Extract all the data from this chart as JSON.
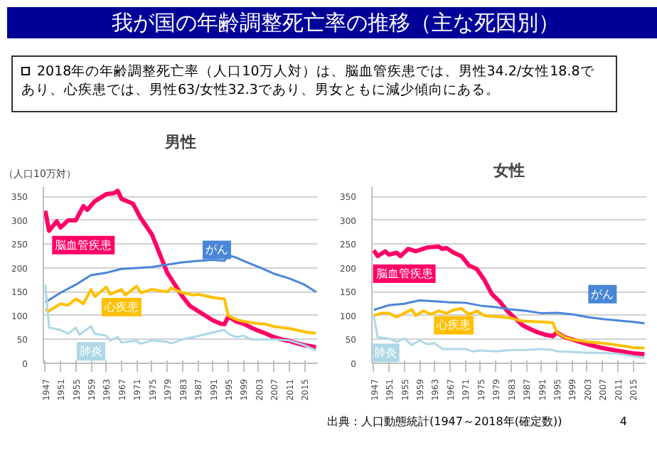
{
  "chart_data": [
    {
      "type": "line",
      "title": "男性",
      "ylabel": "（人口10万対）",
      "annotations": [
        "我が国の年齢調整死亡率の推移（主な死因別）",
        "2018年の年齢調整死亡率（人口10万人対）は、脳血管疾患では、男性34.2/女性18.8であり、心疾患では、男性63/女性32.3であり、男女ともに減少傾向にある。"
      ],
      "xlim": [
        1946.5,
        2018.5
      ],
      "xticks": [
        1947,
        1951,
        1955,
        1959,
        1963,
        1967,
        1971,
        1975,
        1979,
        1983,
        1987,
        1991,
        1995,
        1999,
        2003,
        2007,
        2011,
        2015
      ],
      "ylim": [
        0,
        370
      ],
      "yticks": [
        0,
        50,
        100,
        150,
        200,
        250,
        300,
        350
      ],
      "grid": "y",
      "series": [
        {
          "name": "脳血管疾患",
          "color": "#ff0066",
          "x": [
            1947,
            1948,
            1950,
            1951,
            1953,
            1955,
            1957,
            1958,
            1960,
            1963,
            1965,
            1966,
            1967,
            1970,
            1972,
            1975,
            1977,
            1979,
            1981,
            1983,
            1985,
            1987,
            1989,
            1991,
            1993,
            1994,
            1995,
            1997,
            1999,
            2001,
            2003,
            2005,
            2007,
            2009,
            2011,
            2013,
            2015,
            2018
          ],
          "values": [
            320,
            278,
            298,
            285,
            300,
            300,
            330,
            322,
            340,
            355,
            357,
            362,
            345,
            335,
            305,
            270,
            230,
            190,
            165,
            140,
            120,
            110,
            100,
            90,
            83,
            82,
            98,
            88,
            83,
            75,
            68,
            62,
            55,
            50,
            47,
            42,
            38,
            34
          ]
        },
        {
          "name": "がん",
          "color": "#4a86d8",
          "x": [
            1947,
            1951,
            1955,
            1959,
            1963,
            1967,
            1971,
            1975,
            1979,
            1983,
            1987,
            1991,
            1994,
            1995,
            1997,
            1999,
            2003,
            2007,
            2011,
            2015,
            2018
          ],
          "values": [
            128,
            148,
            165,
            185,
            190,
            198,
            200,
            202,
            207,
            212,
            215,
            217,
            215,
            227,
            222,
            215,
            202,
            188,
            178,
            165,
            150
          ]
        },
        {
          "name": "心疾患",
          "color": "#ffc000",
          "x": [
            1947,
            1948,
            1951,
            1953,
            1955,
            1957,
            1959,
            1960,
            1963,
            1964,
            1967,
            1968,
            1971,
            1972,
            1975,
            1979,
            1980,
            1983,
            1986,
            1987,
            1991,
            1994,
            1995,
            1997,
            1999,
            2003,
            2005,
            2007,
            2011,
            2015,
            2018
          ],
          "values": [
            113,
            110,
            125,
            122,
            135,
            125,
            155,
            140,
            160,
            145,
            155,
            143,
            162,
            148,
            155,
            150,
            158,
            148,
            143,
            145,
            138,
            135,
            100,
            92,
            88,
            83,
            82,
            77,
            73,
            66,
            63
          ]
        },
        {
          "name": "肺炎",
          "color": "#add8e6",
          "x": [
            1947,
            1948,
            1951,
            1953,
            1955,
            1956,
            1959,
            1960,
            1963,
            1964,
            1966,
            1967,
            1971,
            1972,
            1975,
            1979,
            1980,
            1983,
            1987,
            1991,
            1994,
            1995,
            1997,
            1999,
            2001,
            2007,
            2011,
            2015,
            2018
          ],
          "values": [
            165,
            75,
            70,
            62,
            75,
            60,
            78,
            62,
            58,
            48,
            55,
            44,
            47,
            41,
            48,
            45,
            42,
            50,
            57,
            65,
            70,
            62,
            55,
            58,
            50,
            50,
            48,
            38,
            27
          ]
        }
      ]
    },
    {
      "type": "line",
      "title": "女性",
      "annotations": [
        "出典：人口動態統計(1947～2018年(確定数))",
        "4"
      ],
      "xlim": [
        1946.5,
        2018.5
      ],
      "xticks": [
        1947,
        1951,
        1955,
        1959,
        1963,
        1967,
        1971,
        1975,
        1979,
        1983,
        1987,
        1991,
        1995,
        1999,
        2003,
        2007,
        2011,
        2015
      ],
      "ylim": [
        0,
        370
      ],
      "yticks": [
        0,
        50,
        100,
        150,
        200,
        250,
        300,
        350
      ],
      "grid": "y",
      "series": [
        {
          "name": "脳血管疾患",
          "color": "#ff0066",
          "x": [
            1947,
            1948,
            1950,
            1951,
            1953,
            1954,
            1956,
            1958,
            1961,
            1964,
            1965,
            1966,
            1968,
            1970,
            1972,
            1974,
            1976,
            1978,
            1980,
            1982,
            1984,
            1986,
            1988,
            1990,
            1992,
            1994,
            1995,
            1997,
            1999,
            2003,
            2007,
            2011,
            2015,
            2018
          ],
          "values": [
            237,
            225,
            235,
            228,
            232,
            225,
            240,
            235,
            243,
            245,
            240,
            242,
            232,
            225,
            205,
            198,
            175,
            145,
            130,
            110,
            95,
            80,
            72,
            65,
            60,
            57,
            65,
            55,
            50,
            40,
            32,
            26,
            21,
            19
          ]
        },
        {
          "name": "がん",
          "color": "#4a86d8",
          "x": [
            1947,
            1951,
            1955,
            1959,
            1963,
            1967,
            1971,
            1975,
            1979,
            1983,
            1987,
            1991,
            1995,
            1999,
            2003,
            2007,
            2011,
            2015,
            2018
          ],
          "values": [
            112,
            122,
            125,
            132,
            130,
            128,
            127,
            121,
            118,
            113,
            110,
            105,
            106,
            103,
            97,
            93,
            90,
            87,
            84
          ]
        },
        {
          "name": "心疾患",
          "color": "#ffc000",
          "x": [
            1947,
            1949,
            1951,
            1953,
            1955,
            1957,
            1958,
            1960,
            1962,
            1964,
            1966,
            1968,
            1970,
            1972,
            1974,
            1976,
            1979,
            1983,
            1985,
            1987,
            1991,
            1994,
            1995,
            1997,
            1999,
            2003,
            2007,
            2011,
            2015,
            2018
          ],
          "values": [
            100,
            105,
            105,
            97,
            105,
            113,
            100,
            110,
            103,
            110,
            105,
            112,
            115,
            102,
            110,
            100,
            98,
            95,
            90,
            88,
            87,
            85,
            65,
            55,
            50,
            45,
            42,
            38,
            33,
            32
          ]
        },
        {
          "name": "肺炎",
          "color": "#add8e6",
          "x": [
            1947,
            1948,
            1951,
            1953,
            1955,
            1957,
            1959,
            1961,
            1963,
            1965,
            1967,
            1971,
            1973,
            1975,
            1979,
            1983,
            1987,
            1991,
            1994,
            1995,
            1999,
            2003,
            2007,
            2011,
            2015,
            2018
          ],
          "values": [
            100,
            55,
            52,
            45,
            52,
            38,
            48,
            40,
            42,
            30,
            30,
            30,
            25,
            27,
            25,
            28,
            28,
            30,
            28,
            25,
            24,
            22,
            22,
            20,
            15,
            11
          ]
        }
      ]
    }
  ]
}
